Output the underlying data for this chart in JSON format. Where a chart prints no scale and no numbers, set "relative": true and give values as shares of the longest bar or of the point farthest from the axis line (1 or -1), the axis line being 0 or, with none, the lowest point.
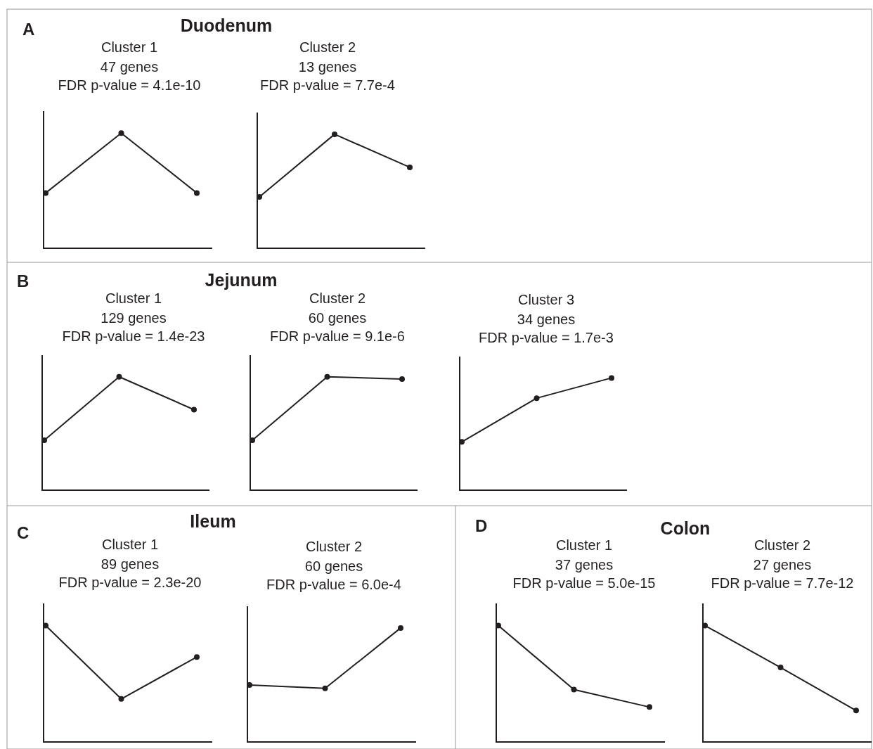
{
  "chart_data": [
    {
      "type": "line",
      "title": "Cluster 1",
      "subtitle": "47 genes",
      "annotations": [
        "A",
        "Duodenum",
        "FDR p-value = 4.1e-10"
      ],
      "categories": [
        null,
        null,
        null
      ],
      "values": [
        0.48,
        1,
        0.48
      ],
      "relative": true,
      "color": "#231f20",
      "marker": "circle",
      "line_style": "solid"
    },
    {
      "type": "line",
      "title": "Cluster 2",
      "subtitle": "13 genes",
      "annotations": [
        "FDR p-value = 7.7e-4"
      ],
      "categories": [
        null,
        null,
        null
      ],
      "values": [
        0.45,
        1,
        0.71
      ],
      "relative": true,
      "color": "#231f20",
      "marker": "circle",
      "line_style": "solid"
    },
    {
      "type": "line",
      "title": "Cluster 1",
      "subtitle": "129 genes",
      "annotations": [
        "B",
        "Jejunum",
        "FDR p-value = 1.4e-23"
      ],
      "categories": [
        null,
        null,
        null
      ],
      "values": [
        0.44,
        1,
        0.71
      ],
      "relative": true,
      "color": "#231f20",
      "marker": "circle",
      "line_style": "solid"
    },
    {
      "type": "line",
      "title": "Cluster 2",
      "subtitle": "60 genes",
      "annotations": [
        "FDR p-value = 9.1e-6"
      ],
      "categories": [
        null,
        null,
        null
      ],
      "values": [
        0.44,
        1,
        0.98
      ],
      "relative": true,
      "color": "#231f20",
      "marker": "circle",
      "line_style": "solid"
    },
    {
      "type": "line",
      "title": "Cluster 3",
      "subtitle": "34 genes",
      "annotations": [
        "FDR p-value = 1.7e-3"
      ],
      "categories": [
        null,
        null,
        null
      ],
      "values": [
        0.43,
        0.82,
        1
      ],
      "relative": true,
      "color": "#231f20",
      "marker": "circle",
      "line_style": "solid"
    },
    {
      "type": "line",
      "title": "Cluster 1",
      "subtitle": "89 genes",
      "annotations": [
        "C",
        "Ileum",
        "FDR p-value = 2.3e-20"
      ],
      "categories": [
        null,
        null,
        null
      ],
      "values": [
        1,
        0.37,
        0.73
      ],
      "relative": true,
      "color": "#231f20",
      "marker": "circle",
      "line_style": "solid"
    },
    {
      "type": "line",
      "title": "Cluster 2",
      "subtitle": "60 genes",
      "annotations": [
        "FDR p-value = 6.0e-4"
      ],
      "categories": [
        null,
        null,
        null
      ],
      "values": [
        0.5,
        0.47,
        1
      ],
      "relative": true,
      "color": "#231f20",
      "marker": "circle",
      "line_style": "solid"
    },
    {
      "type": "line",
      "title": "Cluster 1",
      "subtitle": "37 genes",
      "annotations": [
        "D",
        "Colon",
        "FDR p-value = 5.0e-15"
      ],
      "categories": [
        null,
        null,
        null
      ],
      "values": [
        1,
        0.45,
        0.3
      ],
      "relative": true,
      "color": "#231f20",
      "marker": "circle",
      "line_style": "solid"
    },
    {
      "type": "line",
      "title": "Cluster 2",
      "subtitle": "27 genes",
      "annotations": [
        "FDR p-value = 7.7e-12"
      ],
      "categories": [
        null,
        null,
        null
      ],
      "values": [
        1,
        0.64,
        0.27
      ],
      "relative": true,
      "color": "#231f20",
      "marker": "circle",
      "line_style": "solid"
    }
  ]
}
